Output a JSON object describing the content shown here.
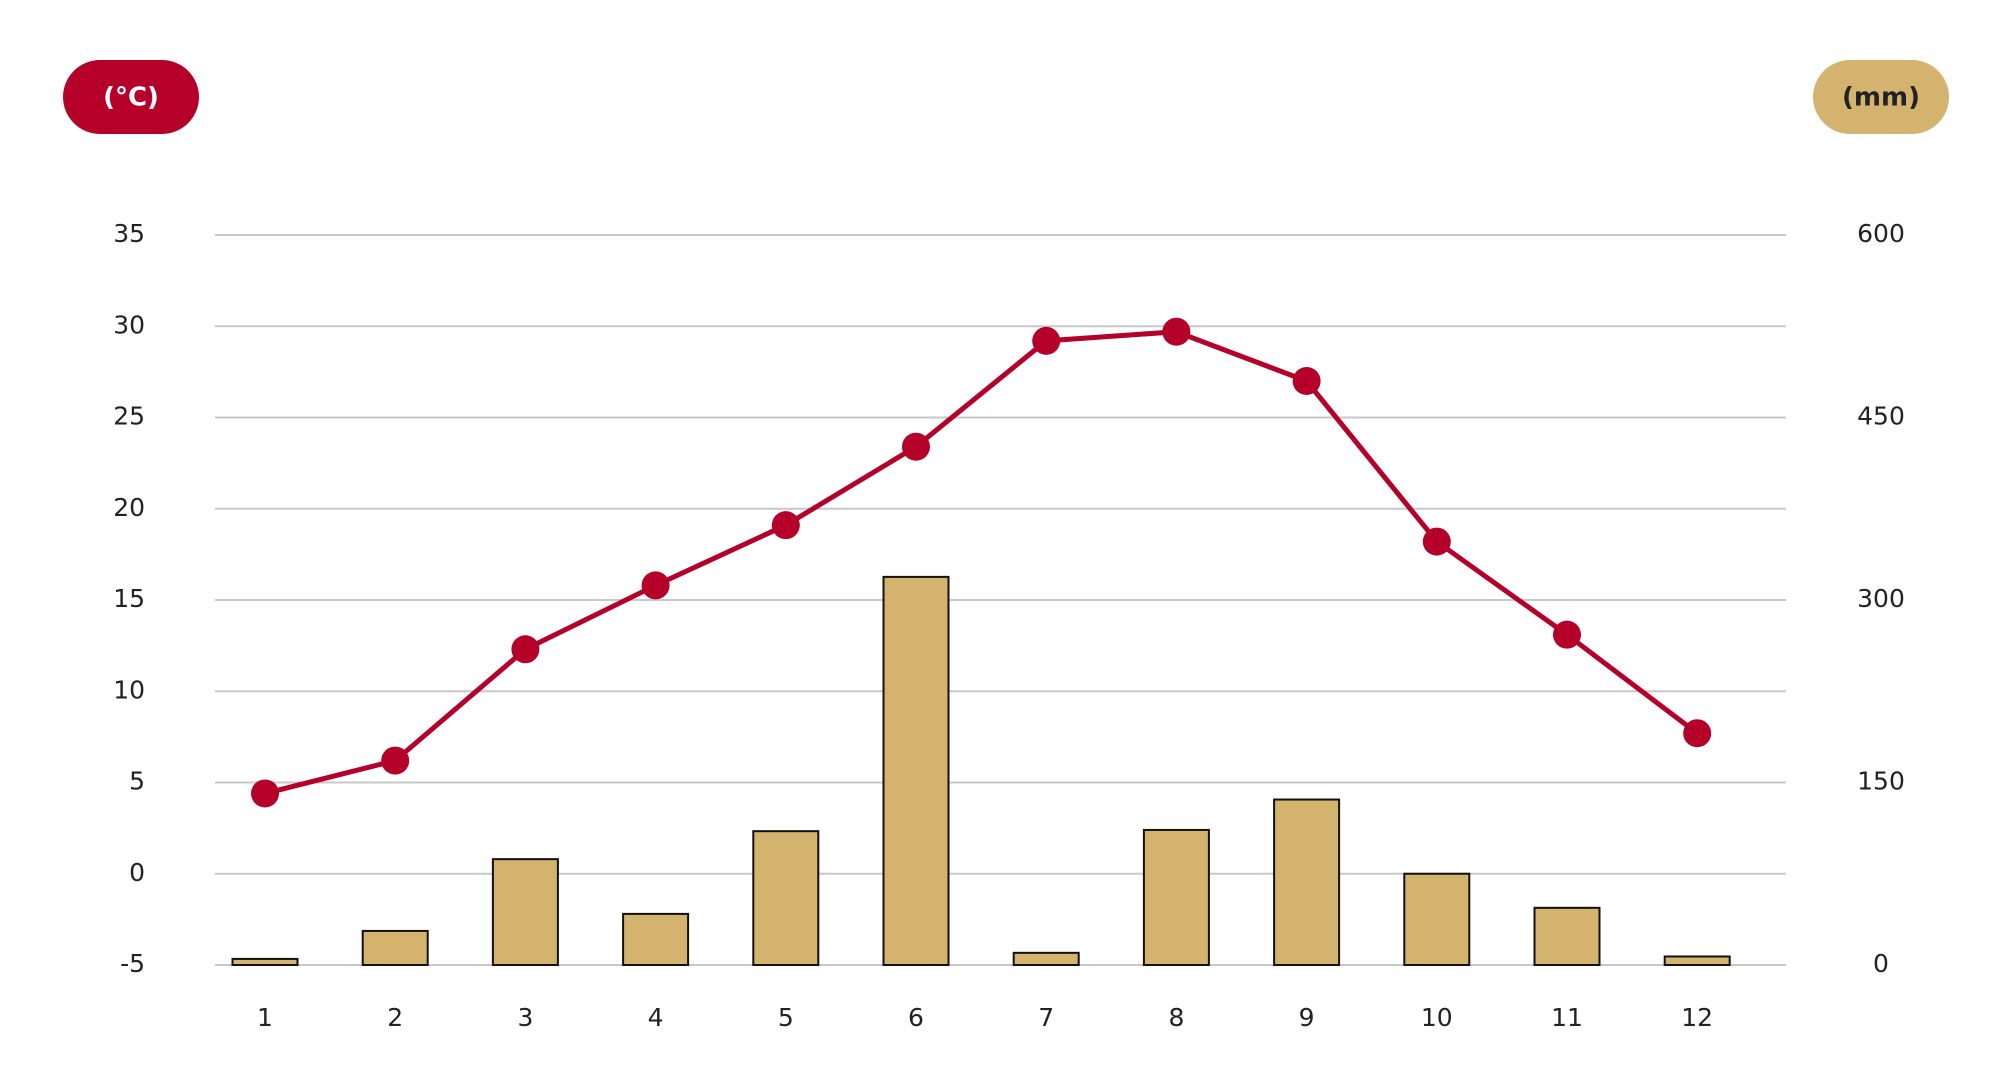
{
  "chart_data": {
    "type": "bar_line",
    "y_label": "(°C)",
    "y2_label": "(mm)",
    "categories": [
      "1",
      "2",
      "3",
      "4",
      "5",
      "6",
      "7",
      "8",
      "9",
      "10",
      "11",
      "12"
    ],
    "series": [
      {
        "type": "bar",
        "axis": "y2",
        "color": "#d4b36e",
        "values": [
          5,
          28,
          87,
          42,
          110,
          319,
          10,
          111,
          136,
          75,
          47,
          7
        ]
      },
      {
        "type": "line",
        "axis": "y",
        "color": "#b5002a",
        "values": [
          4.4,
          6.2,
          12.3,
          15.8,
          19.1,
          23.4,
          29.2,
          29.7,
          27.0,
          18.2,
          13.1,
          7.7
        ]
      }
    ],
    "ylim": [
      -5,
      35
    ],
    "yticks": [
      -5,
      0,
      5,
      10,
      15,
      20,
      25,
      30,
      35
    ],
    "y2lim": [
      0,
      600
    ],
    "y2ticks": [
      0,
      150,
      300,
      450,
      600
    ],
    "grid": true
  }
}
